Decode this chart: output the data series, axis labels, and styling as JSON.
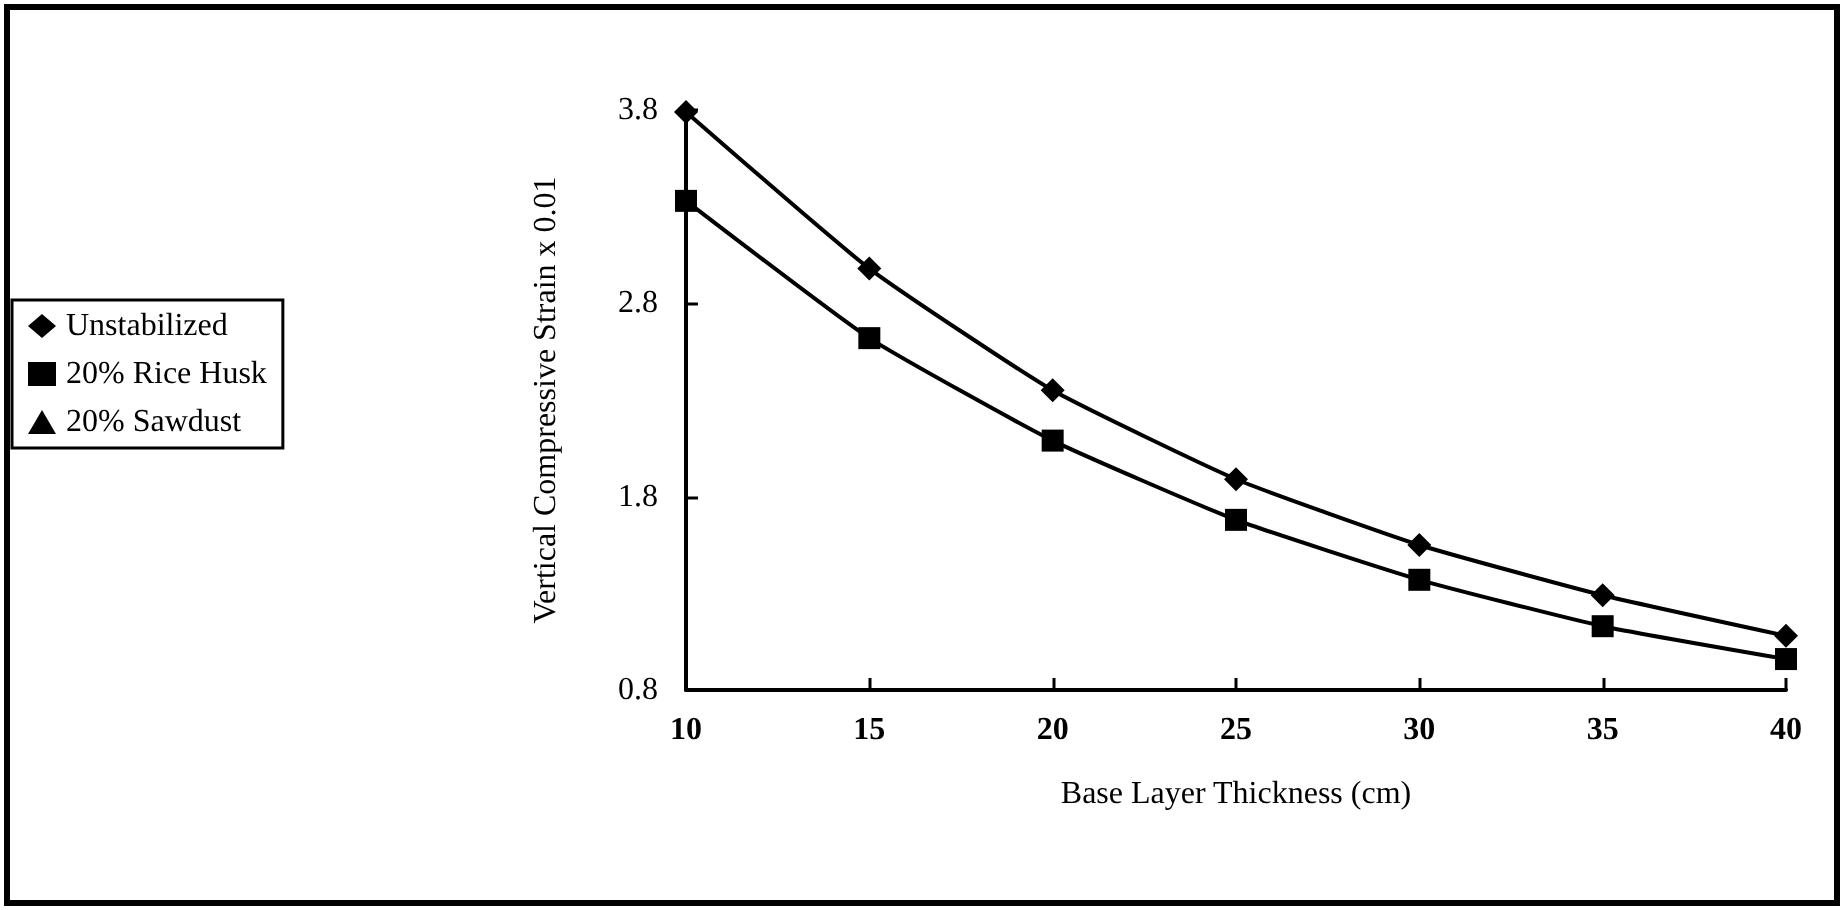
{
  "chart_data": {
    "type": "line",
    "xlabel": "Base Layer Thickness (cm)",
    "ylabel": "Vertical Compressive Strain x 0.01",
    "x": [
      10,
      15,
      20,
      25,
      30,
      35,
      40
    ],
    "series": [
      {
        "name": "Unstabilized",
        "color": "#000000",
        "marker": "diamond",
        "values": [
          3.79,
          2.98,
          2.35,
          1.89,
          1.55,
          1.29,
          1.08
        ]
      },
      {
        "name": "20% Rice Husk",
        "color": "#000000",
        "marker": "square",
        "values": [
          3.33,
          2.62,
          2.09,
          1.68,
          1.37,
          1.13,
          0.96
        ]
      },
      {
        "name": "20% Sawdust",
        "color": "#000000",
        "marker": "triangle",
        "values": [
          null,
          null,
          null,
          null,
          null,
          null,
          null
        ]
      }
    ],
    "xlim": [
      10,
      40
    ],
    "xticks": [
      10,
      15,
      20,
      25,
      30,
      35,
      40
    ],
    "ylim": [
      0.8,
      3.8
    ],
    "yticks": [
      0.8,
      1.8,
      2.8,
      3.8
    ],
    "grid": false,
    "legend": "left",
    "line_style": "solid"
  }
}
